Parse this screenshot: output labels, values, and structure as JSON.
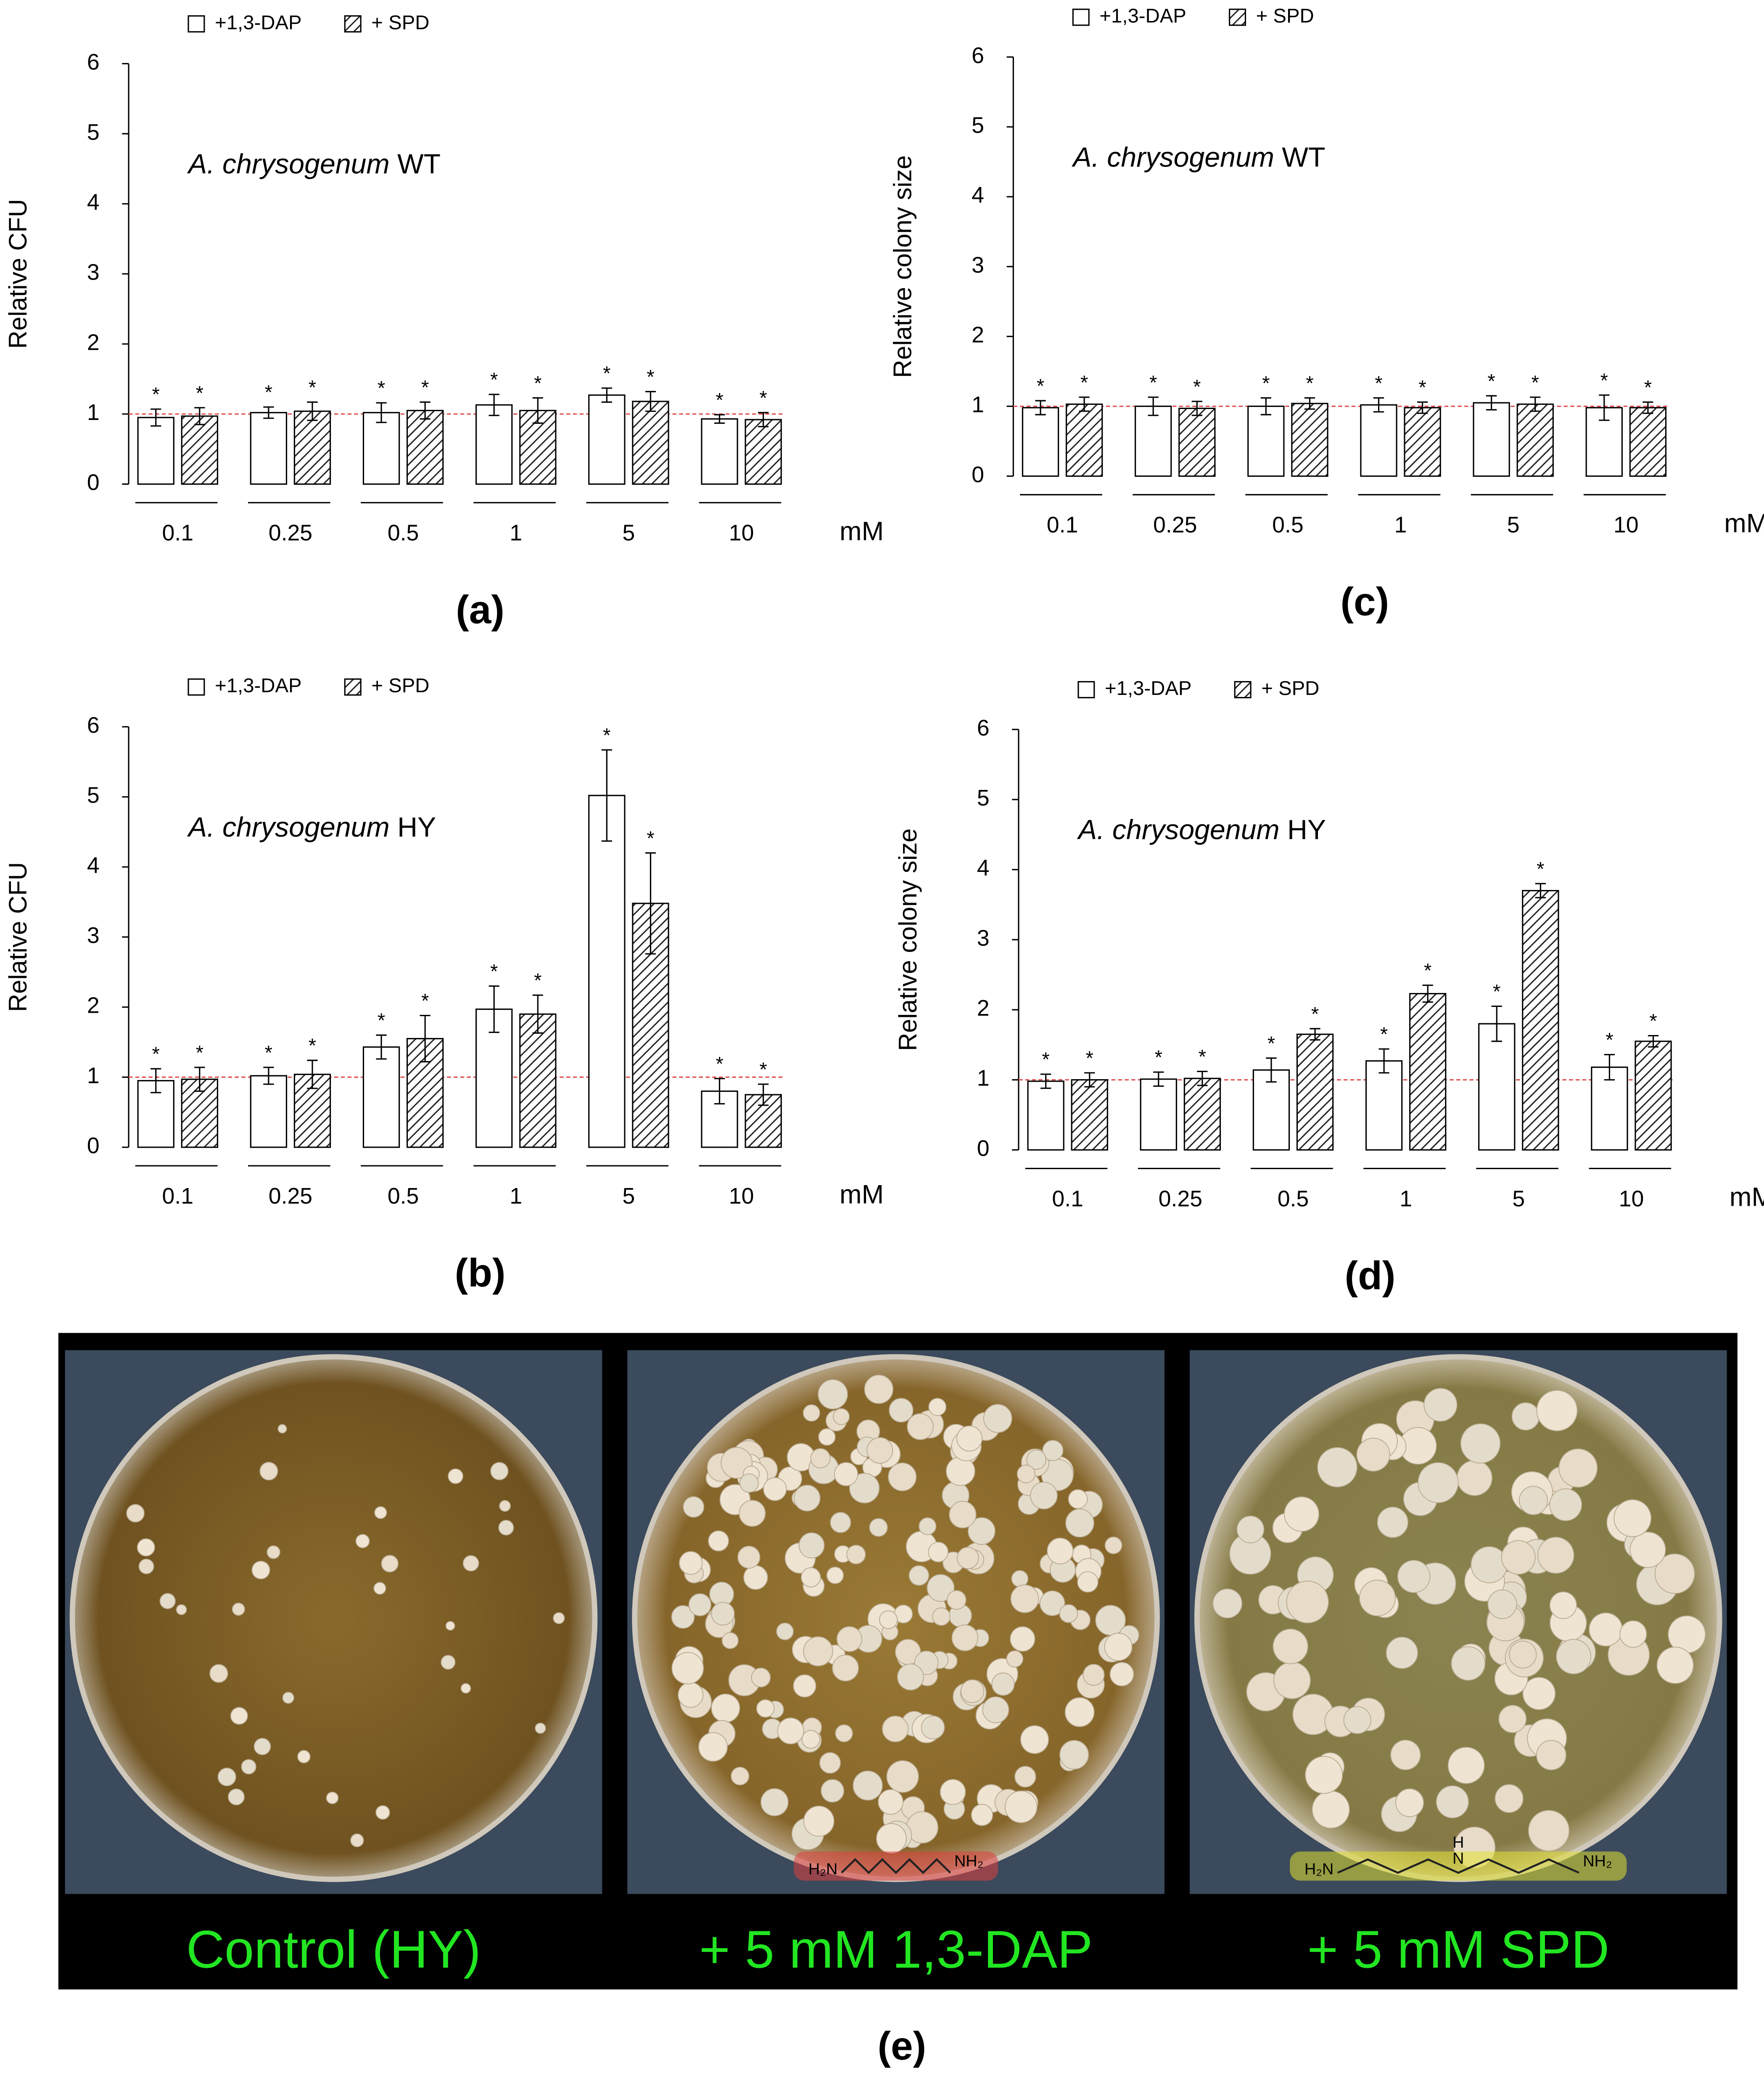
{
  "chart_data": [
    {
      "type": "bar",
      "panel_label": "(a)",
      "ylabel": "Relative CFU",
      "annotation": {
        "species": "A. chrysogenum",
        "strain": "WT"
      },
      "x_unit": "mM",
      "categories": [
        "0.1",
        "0.25",
        "0.5",
        "1",
        "5",
        "10"
      ],
      "ylim": [
        0,
        6
      ],
      "yticks": [
        0,
        1,
        2,
        3,
        4,
        5,
        6
      ],
      "reference_line": 1,
      "series": [
        {
          "name": "+1,3-DAP",
          "color": "#ffffff",
          "hatch": false,
          "values": [
            0.95,
            1.02,
            1.02,
            1.13,
            1.27,
            0.93
          ],
          "errors": [
            0.12,
            0.08,
            0.14,
            0.15,
            0.1,
            0.06
          ],
          "markers": [
            "*",
            "*",
            "*",
            "*",
            "*",
            "*"
          ]
        },
        {
          "name": "+ SPD",
          "color": "#ffffff",
          "hatch": true,
          "values": [
            0.97,
            1.04,
            1.05,
            1.05,
            1.18,
            0.92
          ],
          "errors": [
            0.12,
            0.13,
            0.12,
            0.18,
            0.14,
            0.1
          ],
          "markers": [
            "*",
            "*",
            "*",
            "*",
            "*",
            "*"
          ]
        }
      ]
    },
    {
      "type": "bar",
      "panel_label": "(b)",
      "ylabel": "Relative CFU",
      "annotation": {
        "species": "A. chrysogenum",
        "strain": "HY"
      },
      "x_unit": "mM",
      "categories": [
        "0.1",
        "0.25",
        "0.5",
        "1",
        "5",
        "10"
      ],
      "ylim": [
        0,
        6
      ],
      "yticks": [
        0,
        1,
        2,
        3,
        4,
        5,
        6
      ],
      "reference_line": 1,
      "series": [
        {
          "name": "+1,3-DAP",
          "color": "#ffffff",
          "hatch": false,
          "values": [
            0.95,
            1.02,
            1.43,
            1.97,
            5.02,
            0.8
          ],
          "errors": [
            0.17,
            0.12,
            0.17,
            0.33,
            0.65,
            0.18
          ],
          "markers": [
            "*",
            "*",
            "*",
            "*",
            "*",
            "*"
          ]
        },
        {
          "name": "+ SPD",
          "color": "#ffffff",
          "hatch": true,
          "values": [
            0.97,
            1.04,
            1.55,
            1.9,
            3.48,
            0.75
          ],
          "errors": [
            0.17,
            0.2,
            0.33,
            0.27,
            0.72,
            0.15
          ],
          "markers": [
            "*",
            "*",
            "*",
            "*",
            "*",
            "*"
          ]
        }
      ]
    },
    {
      "type": "bar",
      "panel_label": "(c)",
      "ylabel": "Relative colony size",
      "annotation": {
        "species": "A. chrysogenum",
        "strain": "WT"
      },
      "x_unit": "mM",
      "categories": [
        "0.1",
        "0.25",
        "0.5",
        "1",
        "5",
        "10"
      ],
      "ylim": [
        0,
        6
      ],
      "yticks": [
        0,
        1,
        2,
        3,
        4,
        5,
        6
      ],
      "reference_line": 1,
      "series": [
        {
          "name": "+1,3-DAP",
          "color": "#ffffff",
          "hatch": false,
          "values": [
            0.98,
            1.0,
            1.0,
            1.02,
            1.05,
            0.98
          ],
          "errors": [
            0.1,
            0.13,
            0.12,
            0.1,
            0.1,
            0.18
          ],
          "markers": [
            "*",
            "*",
            "*",
            "*",
            "*",
            "*"
          ]
        },
        {
          "name": "+ SPD",
          "color": "#ffffff",
          "hatch": true,
          "values": [
            1.03,
            0.97,
            1.04,
            0.98,
            1.03,
            0.98
          ],
          "errors": [
            0.1,
            0.1,
            0.08,
            0.08,
            0.1,
            0.08
          ],
          "markers": [
            "*",
            "*",
            "*",
            "*",
            "*",
            "*"
          ]
        }
      ]
    },
    {
      "type": "bar",
      "panel_label": "(d)",
      "ylabel": "Relative colony size",
      "annotation": {
        "species": "A. chrysogenum",
        "strain": "HY"
      },
      "x_unit": "mM",
      "categories": [
        "0.1",
        "0.25",
        "0.5",
        "1",
        "5",
        "10"
      ],
      "ylim": [
        0,
        6
      ],
      "yticks": [
        0,
        1,
        2,
        3,
        4,
        5,
        6
      ],
      "reference_line": 1,
      "series": [
        {
          "name": "+1,3-DAP",
          "color": "#ffffff",
          "hatch": false,
          "values": [
            0.98,
            1.01,
            1.14,
            1.27,
            1.8,
            1.18
          ],
          "errors": [
            0.1,
            0.1,
            0.17,
            0.17,
            0.25,
            0.18
          ],
          "markers": [
            "*",
            "*",
            "*",
            "*",
            "*",
            "*"
          ]
        },
        {
          "name": "+ SPD",
          "color": "#ffffff",
          "hatch": true,
          "values": [
            1.0,
            1.02,
            1.65,
            2.23,
            3.7,
            1.55
          ],
          "errors": [
            0.1,
            0.1,
            0.08,
            0.12,
            0.1,
            0.08
          ],
          "markers": [
            "*",
            "*",
            "*",
            "*",
            "*",
            "*"
          ]
        }
      ]
    }
  ],
  "photo_panel": {
    "panel_label": "(e)",
    "plates": [
      {
        "caption": "Control (HY)",
        "structure": []
      },
      {
        "caption": "+ 5 mM 1,3-DAP",
        "structure": [
          "H₂N",
          "NH₂"
        ]
      },
      {
        "caption": "+ 5 mM SPD",
        "structure": [
          "H₂N",
          "H",
          "N",
          "NH₂"
        ]
      }
    ]
  }
}
